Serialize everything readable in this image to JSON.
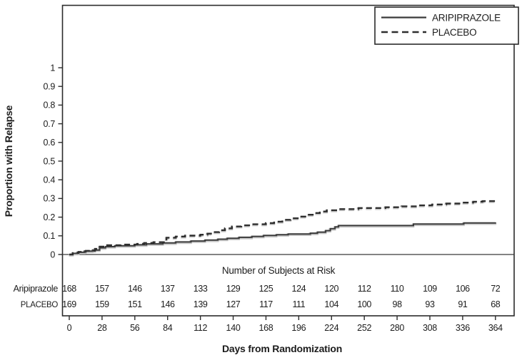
{
  "chart_data": {
    "type": "line",
    "subtype": "kaplan-meier-step",
    "title": "",
    "xlabel": "Days from Randomization",
    "ylabel": "Proportion with Relapse",
    "xlim": [
      0,
      364
    ],
    "ylim": [
      0,
      1
    ],
    "x_ticks": [
      0,
      28,
      56,
      84,
      112,
      140,
      168,
      196,
      224,
      252,
      280,
      308,
      336,
      364
    ],
    "y_ticks": [
      0,
      0.1,
      0.2,
      0.3,
      0.4,
      0.5,
      0.6,
      0.7,
      0.8,
      0.9,
      1
    ],
    "grid": false,
    "legend_position": "top-right",
    "series": [
      {
        "name": "ARIPIPRAZOLE",
        "style": "solid",
        "color": "#3a3a3a",
        "step": true,
        "points": [
          [
            0,
            0
          ],
          [
            3,
            0.006
          ],
          [
            7,
            0.012
          ],
          [
            13,
            0.018
          ],
          [
            20,
            0.024
          ],
          [
            26,
            0.036
          ],
          [
            31,
            0.042
          ],
          [
            39,
            0.047
          ],
          [
            56,
            0.052
          ],
          [
            66,
            0.057
          ],
          [
            80,
            0.062
          ],
          [
            91,
            0.067
          ],
          [
            104,
            0.072
          ],
          [
            116,
            0.077
          ],
          [
            127,
            0.082
          ],
          [
            135,
            0.087
          ],
          [
            145,
            0.092
          ],
          [
            156,
            0.097
          ],
          [
            166,
            0.102
          ],
          [
            177,
            0.106
          ],
          [
            187,
            0.11
          ],
          [
            206,
            0.114
          ],
          [
            212,
            0.12
          ],
          [
            219,
            0.128
          ],
          [
            223,
            0.138
          ],
          [
            227,
            0.148
          ],
          [
            230,
            0.155
          ],
          [
            294,
            0.163
          ],
          [
            337,
            0.169
          ],
          [
            364,
            0.172
          ]
        ]
      },
      {
        "name": "PLACEBO",
        "style": "dashed",
        "color": "#2e2e2e",
        "step": true,
        "points": [
          [
            0,
            0
          ],
          [
            3,
            0.008
          ],
          [
            8,
            0.014
          ],
          [
            14,
            0.02
          ],
          [
            22,
            0.03
          ],
          [
            26,
            0.042
          ],
          [
            30,
            0.05
          ],
          [
            44,
            0.053
          ],
          [
            58,
            0.057
          ],
          [
            64,
            0.062
          ],
          [
            72,
            0.066
          ],
          [
            83,
            0.09
          ],
          [
            91,
            0.096
          ],
          [
            99,
            0.101
          ],
          [
            112,
            0.106
          ],
          [
            118,
            0.112
          ],
          [
            123,
            0.12
          ],
          [
            128,
            0.13
          ],
          [
            133,
            0.14
          ],
          [
            139,
            0.15
          ],
          [
            147,
            0.156
          ],
          [
            155,
            0.162
          ],
          [
            168,
            0.168
          ],
          [
            175,
            0.176
          ],
          [
            182,
            0.186
          ],
          [
            189,
            0.194
          ],
          [
            196,
            0.203
          ],
          [
            203,
            0.213
          ],
          [
            209,
            0.222
          ],
          [
            214,
            0.23
          ],
          [
            220,
            0.237
          ],
          [
            228,
            0.243
          ],
          [
            247,
            0.249
          ],
          [
            270,
            0.253
          ],
          [
            284,
            0.258
          ],
          [
            296,
            0.263
          ],
          [
            310,
            0.268
          ],
          [
            322,
            0.273
          ],
          [
            335,
            0.278
          ],
          [
            345,
            0.283
          ],
          [
            353,
            0.286
          ],
          [
            364,
            0.289
          ]
        ]
      }
    ]
  },
  "legend": {
    "items": [
      {
        "label": "ARIPIPRAZOLE",
        "line": "solid"
      },
      {
        "label": "PLACEBO",
        "line": "dashed"
      }
    ]
  },
  "at_risk": {
    "title": "Number of Subjects at Risk",
    "days": [
      0,
      28,
      56,
      84,
      112,
      140,
      168,
      196,
      224,
      252,
      280,
      308,
      336,
      364
    ],
    "rows": [
      {
        "label": "Aripiprazole",
        "values": [
          168,
          157,
          146,
          137,
          133,
          129,
          125,
          124,
          120,
          112,
          110,
          109,
          106,
          72
        ]
      },
      {
        "label": "PLACEBO",
        "values": [
          169,
          159,
          151,
          146,
          139,
          127,
          117,
          111,
          104,
          100,
          98,
          93,
          91,
          68
        ]
      }
    ]
  },
  "colors": {
    "frame": "#2b2b2b",
    "text": "#1c1c1c",
    "halo": "#c8c8c8",
    "background": "#ffffff"
  }
}
